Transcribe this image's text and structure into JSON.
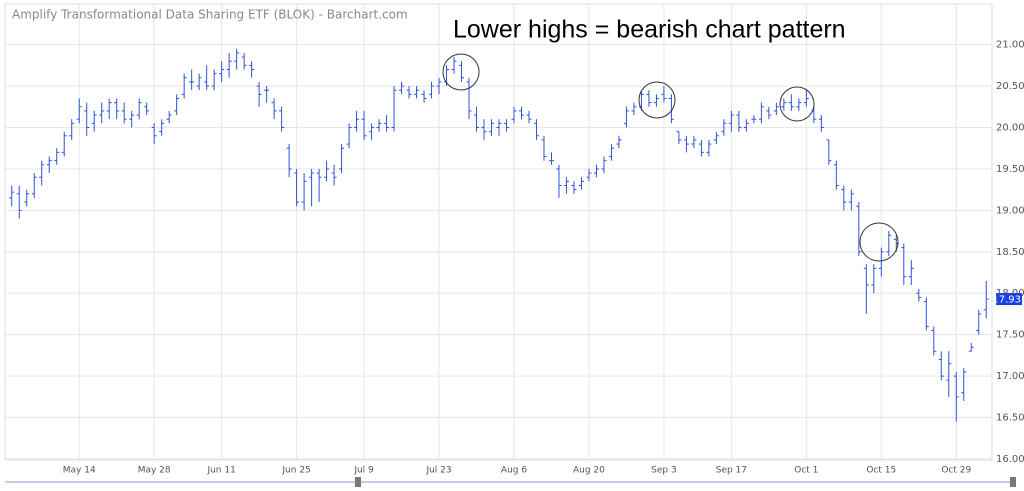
{
  "chart_data": {
    "type": "ohlc",
    "title": "Amplify Transformational Data Sharing ETF (BLOK) - Barchart.com",
    "annotation": "Lower highs = bearish chart pattern",
    "categories": [
      null,
      null,
      null,
      null,
      null,
      null,
      null,
      null,
      null,
      "May 14",
      null,
      null,
      null,
      null,
      null,
      null,
      null,
      null,
      null,
      "May 28",
      null,
      null,
      null,
      null,
      null,
      null,
      null,
      null,
      "Jun 11",
      null,
      null,
      null,
      null,
      null,
      null,
      null,
      null,
      null,
      "Jun 25",
      null,
      null,
      null,
      null,
      null,
      null,
      null,
      null,
      "Jul 9",
      null,
      null,
      null,
      null,
      null,
      null,
      null,
      null,
      null,
      "Jul 23",
      null,
      null,
      null,
      null,
      null,
      null,
      null,
      null,
      null,
      "Aug 6",
      null,
      null,
      null,
      null,
      null,
      null,
      null,
      null,
      null,
      "Aug 20",
      null,
      null,
      null,
      null,
      null,
      null,
      null,
      null,
      null,
      "Sep 3",
      null,
      null,
      null,
      null,
      null,
      null,
      null,
      null,
      "Sep 17",
      null,
      null,
      null,
      null,
      null,
      null,
      null,
      null,
      null,
      "Oct 1",
      null,
      null,
      null,
      null,
      null,
      null,
      null,
      null,
      null,
      "Oct 15",
      null,
      null,
      null,
      null,
      null,
      null,
      null,
      null,
      null,
      "Oct 29",
      null,
      null,
      null,
      null
    ],
    "series": [
      {
        "color": "#2f52d8",
        "values": [
          [
            19.15,
            19.3,
            19.05,
            19.22
          ],
          [
            19.2,
            19.3,
            18.9,
            19.0
          ],
          [
            19.1,
            19.25,
            19.05,
            19.2
          ],
          [
            19.2,
            19.45,
            19.15,
            19.4
          ],
          [
            19.4,
            19.6,
            19.3,
            19.55
          ],
          [
            19.55,
            19.65,
            19.45,
            19.6
          ],
          [
            19.6,
            19.75,
            19.55,
            19.7
          ],
          [
            19.7,
            19.95,
            19.65,
            19.9
          ],
          [
            19.9,
            20.1,
            19.85,
            20.05
          ],
          [
            20.1,
            20.35,
            20.05,
            20.25
          ],
          [
            20.2,
            20.3,
            19.9,
            20.0
          ],
          [
            20.05,
            20.2,
            19.95,
            20.15
          ],
          [
            20.15,
            20.3,
            20.05,
            20.2
          ],
          [
            20.2,
            20.35,
            20.1,
            20.3
          ],
          [
            20.3,
            20.35,
            20.1,
            20.2
          ],
          [
            20.2,
            20.3,
            20.05,
            20.1
          ],
          [
            20.1,
            20.2,
            20.0,
            20.15
          ],
          [
            20.15,
            20.35,
            20.1,
            20.3
          ],
          [
            20.25,
            20.3,
            20.15,
            20.2
          ],
          [
            20.0,
            20.05,
            19.8,
            19.9
          ],
          [
            19.95,
            20.1,
            19.9,
            20.05
          ],
          [
            20.1,
            20.2,
            20.05,
            20.15
          ],
          [
            20.2,
            20.4,
            20.15,
            20.35
          ],
          [
            20.4,
            20.65,
            20.35,
            20.6
          ],
          [
            20.55,
            20.7,
            20.45,
            20.55
          ],
          [
            20.5,
            20.65,
            20.45,
            20.6
          ],
          [
            20.55,
            20.75,
            20.45,
            20.5
          ],
          [
            20.5,
            20.7,
            20.45,
            20.65
          ],
          [
            20.65,
            20.8,
            20.55,
            20.7
          ],
          [
            20.7,
            20.9,
            20.6,
            20.8
          ],
          [
            20.8,
            20.95,
            20.7,
            20.9
          ],
          [
            20.85,
            20.9,
            20.7,
            20.75
          ],
          [
            20.75,
            20.8,
            20.6,
            20.7
          ],
          [
            20.5,
            20.55,
            20.25,
            20.4
          ],
          [
            20.45,
            20.5,
            20.3,
            20.45
          ],
          [
            20.3,
            20.35,
            20.1,
            20.2
          ],
          [
            20.2,
            20.25,
            19.95,
            20.0
          ],
          [
            19.75,
            19.8,
            19.4,
            19.5
          ],
          [
            19.45,
            19.5,
            19.05,
            19.1
          ],
          [
            19.1,
            19.45,
            19.0,
            19.35
          ],
          [
            19.4,
            19.5,
            19.05,
            19.45
          ],
          [
            19.45,
            19.5,
            19.1,
            19.4
          ],
          [
            19.4,
            19.6,
            19.35,
            19.5
          ],
          [
            19.45,
            19.55,
            19.3,
            19.4
          ],
          [
            19.5,
            19.8,
            19.45,
            19.75
          ],
          [
            19.8,
            20.05,
            19.75,
            20.0
          ],
          [
            20.0,
            20.2,
            19.95,
            20.1
          ],
          [
            20.1,
            20.2,
            19.85,
            19.9
          ],
          [
            19.95,
            20.05,
            19.85,
            20.0
          ],
          [
            20.0,
            20.1,
            19.95,
            20.05
          ],
          [
            20.05,
            20.15,
            19.95,
            20.0
          ],
          [
            20.0,
            20.5,
            19.95,
            20.45
          ],
          [
            20.45,
            20.55,
            20.4,
            20.5
          ],
          [
            20.45,
            20.5,
            20.35,
            20.4
          ],
          [
            20.4,
            20.5,
            20.35,
            20.45
          ],
          [
            20.4,
            20.45,
            20.3,
            20.35
          ],
          [
            20.4,
            20.55,
            20.35,
            20.5
          ],
          [
            20.5,
            20.6,
            20.4,
            20.55
          ],
          [
            20.55,
            20.75,
            20.5,
            20.7
          ],
          [
            20.7,
            20.85,
            20.65,
            20.8
          ],
          [
            20.75,
            20.8,
            20.55,
            20.6
          ],
          [
            20.55,
            20.6,
            20.1,
            20.2
          ],
          [
            20.15,
            20.25,
            19.95,
            20.0
          ],
          [
            20.0,
            20.1,
            19.85,
            19.95
          ],
          [
            19.95,
            20.1,
            19.9,
            20.05
          ],
          [
            20.0,
            20.1,
            19.9,
            20.05
          ],
          [
            20.05,
            20.1,
            19.95,
            20.0
          ],
          [
            20.1,
            20.25,
            20.05,
            20.2
          ],
          [
            20.2,
            20.25,
            20.1,
            20.15
          ],
          [
            20.15,
            20.2,
            20.05,
            20.1
          ],
          [
            20.05,
            20.1,
            19.85,
            19.9
          ],
          [
            19.85,
            19.9,
            19.6,
            19.65
          ],
          [
            19.6,
            19.7,
            19.55,
            19.6
          ],
          [
            19.5,
            19.55,
            19.15,
            19.3
          ],
          [
            19.3,
            19.4,
            19.2,
            19.35
          ],
          [
            19.3,
            19.35,
            19.2,
            19.25
          ],
          [
            19.3,
            19.4,
            19.25,
            19.35
          ],
          [
            19.4,
            19.5,
            19.35,
            19.45
          ],
          [
            19.45,
            19.55,
            19.4,
            19.5
          ],
          [
            19.5,
            19.65,
            19.45,
            19.6
          ],
          [
            19.65,
            19.8,
            19.6,
            19.75
          ],
          [
            19.8,
            19.9,
            19.75,
            19.85
          ],
          [
            20.05,
            20.25,
            20.0,
            20.2
          ],
          [
            20.2,
            20.3,
            20.15,
            20.25
          ],
          [
            20.25,
            20.45,
            20.2,
            20.4
          ],
          [
            20.4,
            20.45,
            20.25,
            20.3
          ],
          [
            20.3,
            20.4,
            20.25,
            20.35
          ],
          [
            20.4,
            20.5,
            20.3,
            20.35
          ],
          [
            20.35,
            20.4,
            20.05,
            20.1
          ],
          [
            19.95,
            19.95,
            19.8,
            19.85
          ],
          [
            19.85,
            19.9,
            19.7,
            19.8
          ],
          [
            19.8,
            19.9,
            19.75,
            19.85
          ],
          [
            19.8,
            19.85,
            19.65,
            19.7
          ],
          [
            19.7,
            19.85,
            19.65,
            19.8
          ],
          [
            19.85,
            19.95,
            19.8,
            19.9
          ],
          [
            19.95,
            20.1,
            19.9,
            20.05
          ],
          [
            20.05,
            20.2,
            19.95,
            20.15
          ],
          [
            20.15,
            20.2,
            19.95,
            20.0
          ],
          [
            20.0,
            20.1,
            19.95,
            20.05
          ],
          [
            20.1,
            20.15,
            20.05,
            20.1
          ],
          [
            20.1,
            20.3,
            20.05,
            20.25
          ],
          [
            20.2,
            20.25,
            20.1,
            20.15
          ],
          [
            20.2,
            20.3,
            20.15,
            20.25
          ],
          [
            20.25,
            20.35,
            20.2,
            20.3
          ],
          [
            20.3,
            20.4,
            20.2,
            20.25
          ],
          [
            20.25,
            20.35,
            20.2,
            20.3
          ],
          [
            20.3,
            20.45,
            20.25,
            20.35
          ],
          [
            20.2,
            20.25,
            20.05,
            20.1
          ],
          [
            20.1,
            20.15,
            19.95,
            20.0
          ],
          [
            19.85,
            19.85,
            19.55,
            19.6
          ],
          [
            19.55,
            19.6,
            19.25,
            19.3
          ],
          [
            19.25,
            19.3,
            19.0,
            19.1
          ],
          [
            19.1,
            19.25,
            19.0,
            19.2
          ],
          [
            19.05,
            19.1,
            18.45,
            18.5
          ],
          [
            18.3,
            18.35,
            17.75,
            18.1
          ],
          [
            18.1,
            18.35,
            18.0,
            18.3
          ],
          [
            18.3,
            18.55,
            18.2,
            18.5
          ],
          [
            18.5,
            18.75,
            18.45,
            18.7
          ],
          [
            18.65,
            18.7,
            18.5,
            18.6
          ],
          [
            18.55,
            18.6,
            18.1,
            18.2
          ],
          [
            18.2,
            18.4,
            18.1,
            18.3
          ],
          [
            18.0,
            18.05,
            17.9,
            17.95
          ],
          [
            17.9,
            17.95,
            17.55,
            17.6
          ],
          [
            17.55,
            17.6,
            17.25,
            17.3
          ],
          [
            17.2,
            17.3,
            16.95,
            17.0
          ],
          [
            16.95,
            17.3,
            16.75,
            17.15
          ],
          [
            17.0,
            17.05,
            16.45,
            16.75
          ],
          [
            16.8,
            17.1,
            16.7,
            17.05
          ],
          [
            17.3,
            17.4,
            17.3,
            17.35
          ],
          [
            17.55,
            17.8,
            17.5,
            17.75
          ],
          [
            17.8,
            18.15,
            17.7,
            17.93
          ]
        ]
      }
    ],
    "last_price": 17.93,
    "ylim": [
      16,
      21.49
    ],
    "yticks": [
      {
        "value": 16,
        "label": "16.00"
      },
      {
        "value": 16.5,
        "label": "16.50"
      },
      {
        "value": 17,
        "label": "17.00"
      },
      {
        "value": 17.5,
        "label": "17.50"
      },
      {
        "value": 18,
        "label": "18.00"
      },
      {
        "value": 18.5,
        "label": "18.50"
      },
      {
        "value": 19,
        "label": "19.00"
      },
      {
        "value": 19.5,
        "label": "19.50"
      },
      {
        "value": 20,
        "label": "20.00"
      },
      {
        "value": 20.5,
        "label": "20.50"
      },
      {
        "value": 21,
        "label": "21.00"
      }
    ],
    "grid": true
  }
}
